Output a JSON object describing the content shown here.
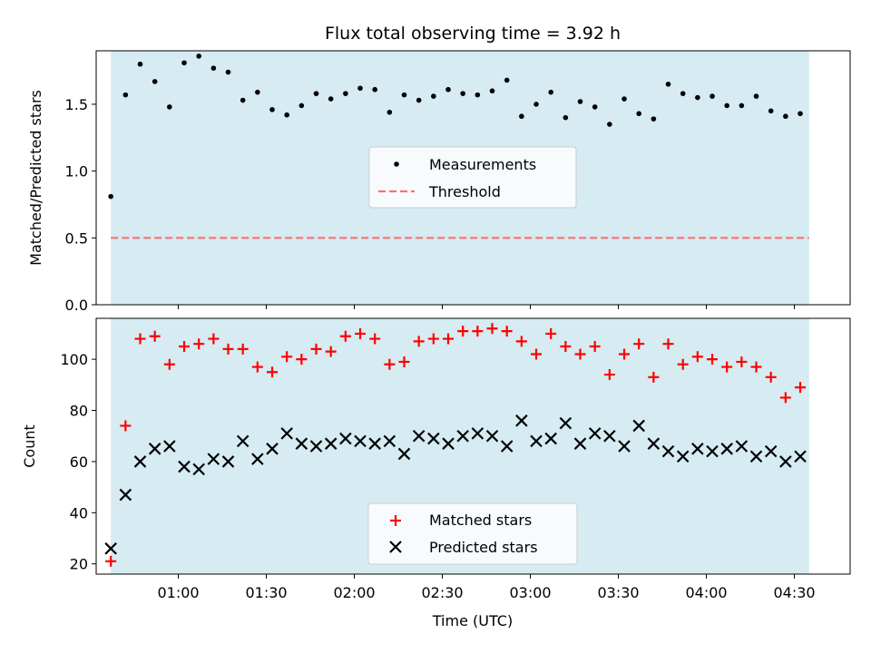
{
  "chart_data": [
    {
      "type": "scatter",
      "title": "Flux total observing time = 3.92 h",
      "xlabel": "",
      "ylabel": "Matched/Predicted stars",
      "xlim": [
        "00:32",
        "04:49"
      ],
      "ylim": [
        0,
        1.9
      ],
      "yticks": [
        "0.0",
        "0.5",
        "1.0",
        "1.5"
      ],
      "shaded_interval": [
        "00:37",
        "04:35"
      ],
      "shade_color": "#add8e6",
      "threshold": 0.5,
      "threshold_color": "#ff6f6f",
      "legend_position": "center",
      "legend": [
        "Measurements",
        "Threshold"
      ],
      "series": [
        {
          "name": "Measurements",
          "color": "#000000",
          "x": [
            "00:37",
            "00:42",
            "00:47",
            "00:52",
            "00:57",
            "01:02",
            "01:07",
            "01:12",
            "01:17",
            "01:22",
            "01:27",
            "01:32",
            "01:37",
            "01:42",
            "01:47",
            "01:52",
            "01:57",
            "02:02",
            "02:07",
            "02:12",
            "02:17",
            "02:22",
            "02:27",
            "02:32",
            "02:37",
            "02:42",
            "02:47",
            "02:52",
            "02:57",
            "03:02",
            "03:07",
            "03:12",
            "03:17",
            "03:22",
            "03:27",
            "03:32",
            "03:37",
            "03:42",
            "03:47",
            "03:52",
            "03:57",
            "04:02",
            "04:07",
            "04:12",
            "04:17",
            "04:22",
            "04:27",
            "04:32"
          ],
          "y": [
            0.81,
            1.57,
            1.8,
            1.67,
            1.48,
            1.81,
            1.86,
            1.77,
            1.74,
            1.53,
            1.59,
            1.46,
            1.42,
            1.49,
            1.58,
            1.54,
            1.58,
            1.62,
            1.61,
            1.44,
            1.57,
            1.53,
            1.56,
            1.61,
            1.58,
            1.57,
            1.6,
            1.68,
            1.41,
            1.5,
            1.59,
            1.4,
            1.52,
            1.48,
            1.35,
            1.54,
            1.43,
            1.39,
            1.65,
            1.58,
            1.55,
            1.56,
            1.49,
            1.49,
            1.56,
            1.45,
            1.41,
            1.43
          ]
        }
      ]
    },
    {
      "type": "scatter",
      "title": "",
      "xlabel": "Time (UTC)",
      "ylabel": "Count",
      "xlim": [
        "00:32",
        "04:49"
      ],
      "ylim": [
        16,
        116
      ],
      "xticks": [
        "01:00",
        "01:30",
        "02:00",
        "02:30",
        "03:00",
        "03:30",
        "04:00",
        "04:30"
      ],
      "yticks": [
        "20",
        "40",
        "60",
        "80",
        "100"
      ],
      "shaded_interval": [
        "00:37",
        "04:35"
      ],
      "shade_color": "#add8e6",
      "legend_position": "lower center",
      "legend": [
        "Matched stars",
        "Predicted stars"
      ],
      "series": [
        {
          "name": "Matched stars",
          "marker": "plus",
          "color": "#ff0000",
          "x": [
            "00:37",
            "00:42",
            "00:47",
            "00:52",
            "00:57",
            "01:02",
            "01:07",
            "01:12",
            "01:17",
            "01:22",
            "01:27",
            "01:32",
            "01:37",
            "01:42",
            "01:47",
            "01:52",
            "01:57",
            "02:02",
            "02:07",
            "02:12",
            "02:17",
            "02:22",
            "02:27",
            "02:32",
            "02:37",
            "02:42",
            "02:47",
            "02:52",
            "02:57",
            "03:02",
            "03:07",
            "03:12",
            "03:17",
            "03:22",
            "03:27",
            "03:32",
            "03:37",
            "03:42",
            "03:47",
            "03:52",
            "03:57",
            "04:02",
            "04:07",
            "04:12",
            "04:17",
            "04:22",
            "04:27",
            "04:32"
          ],
          "y": [
            21,
            74,
            108,
            109,
            98,
            105,
            106,
            108,
            104,
            104,
            97,
            95,
            101,
            100,
            104,
            103,
            109,
            110,
            108,
            98,
            99,
            107,
            108,
            108,
            111,
            111,
            112,
            111,
            107,
            102,
            110,
            105,
            102,
            105,
            94,
            102,
            106,
            93,
            106,
            98,
            101,
            100,
            97,
            99,
            97,
            93,
            85,
            89
          ]
        },
        {
          "name": "Predicted stars",
          "marker": "x",
          "color": "#000000",
          "x": [
            "00:37",
            "00:42",
            "00:47",
            "00:52",
            "00:57",
            "01:02",
            "01:07",
            "01:12",
            "01:17",
            "01:22",
            "01:27",
            "01:32",
            "01:37",
            "01:42",
            "01:47",
            "01:52",
            "01:57",
            "02:02",
            "02:07",
            "02:12",
            "02:17",
            "02:22",
            "02:27",
            "02:32",
            "02:37",
            "02:42",
            "02:47",
            "02:52",
            "02:57",
            "03:02",
            "03:07",
            "03:12",
            "03:17",
            "03:22",
            "03:27",
            "03:32",
            "03:37",
            "03:42",
            "03:47",
            "03:52",
            "03:57",
            "04:02",
            "04:07",
            "04:12",
            "04:17",
            "04:22",
            "04:27",
            "04:32"
          ],
          "y": [
            26,
            47,
            60,
            65,
            66,
            58,
            57,
            61,
            60,
            68,
            61,
            65,
            71,
            67,
            66,
            67,
            69,
            68,
            67,
            68,
            63,
            70,
            69,
            67,
            70,
            71,
            70,
            66,
            76,
            68,
            69,
            75,
            67,
            71,
            70,
            66,
            74,
            67,
            64,
            62,
            65,
            64,
            65,
            66,
            62,
            64,
            60,
            62
          ]
        }
      ]
    }
  ]
}
